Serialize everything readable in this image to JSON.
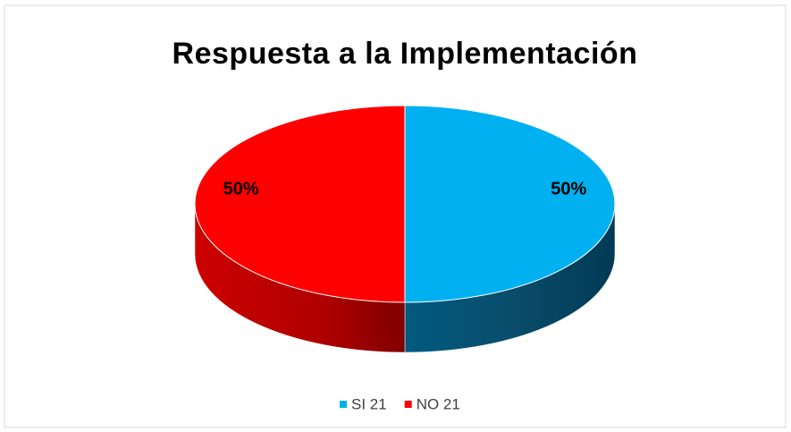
{
  "chart_data": {
    "type": "pie",
    "title": "Respuesta a la Implementación",
    "categories": [
      "SI 21",
      "NO 21"
    ],
    "values": [
      50,
      50
    ],
    "value_labels": [
      "50%",
      "50%"
    ],
    "colors": [
      "#00b0f0",
      "#ff0000"
    ],
    "legend": "bottom"
  }
}
